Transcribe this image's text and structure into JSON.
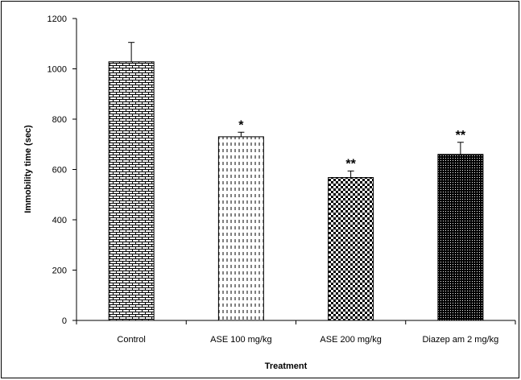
{
  "chart_data": {
    "type": "bar",
    "title": "",
    "xlabel": "Treatment",
    "ylabel": "Immobility time (sec)",
    "categories": [
      "Control",
      "ASE 100 mg/kg",
      "ASE 200 mg/kg",
      "Diazep am 2 mg/kg"
    ],
    "values": [
      1028,
      730,
      568,
      660
    ],
    "errors": [
      77,
      18,
      26,
      48
    ],
    "annotations": [
      "",
      "*",
      "**",
      "**"
    ],
    "patterns": [
      "brick",
      "dashes",
      "checker",
      "dots"
    ],
    "ylim": [
      0,
      1200
    ],
    "yticks": [
      0,
      200,
      400,
      600,
      800,
      1000,
      1200
    ],
    "grid": false,
    "legend": "none"
  }
}
